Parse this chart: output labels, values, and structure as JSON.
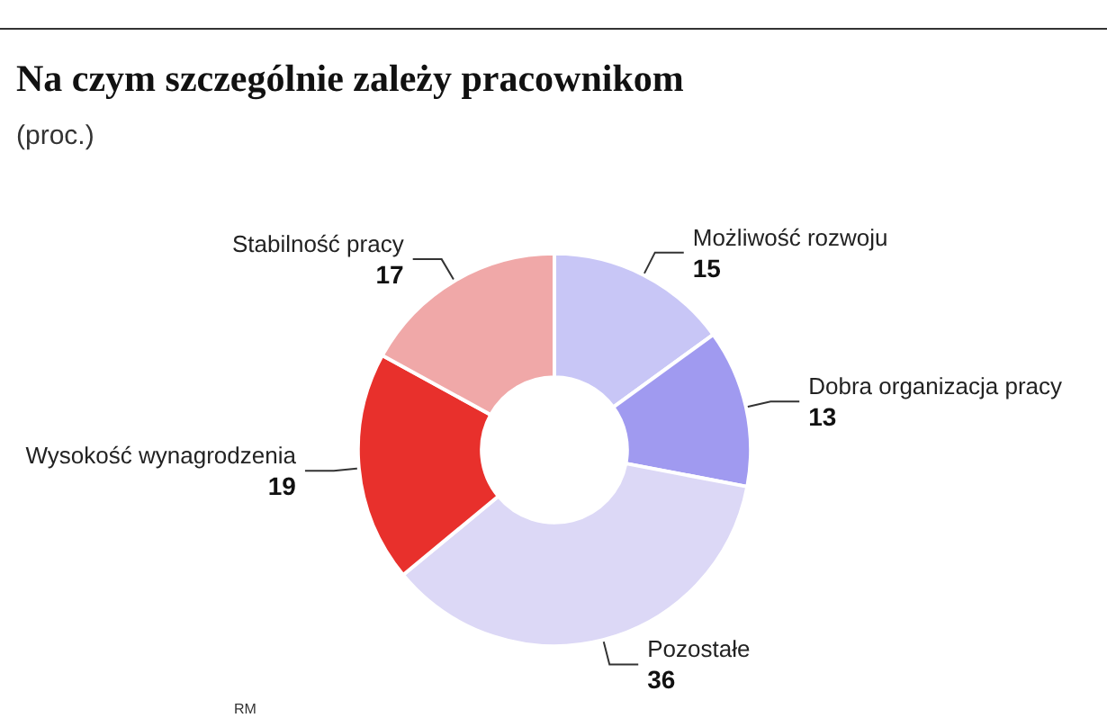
{
  "chart_data": {
    "type": "donut",
    "title": "Na czym szczególnie zależy pracownikom",
    "subtitle": "(proc.)",
    "categories": [
      "Możliwość rozwoju",
      "Dobra organizacja pracy",
      "Pozostałe",
      "Wysokość wynagrodzenia",
      "Stabilność pracy"
    ],
    "values": [
      15,
      13,
      36,
      19,
      17
    ],
    "colors": [
      "#c8c6f6",
      "#a09af0",
      "#dcd8f6",
      "#e8302c",
      "#f0a8a8"
    ],
    "data_labels": true,
    "legend": false,
    "annotations": [
      "RM"
    ]
  }
}
